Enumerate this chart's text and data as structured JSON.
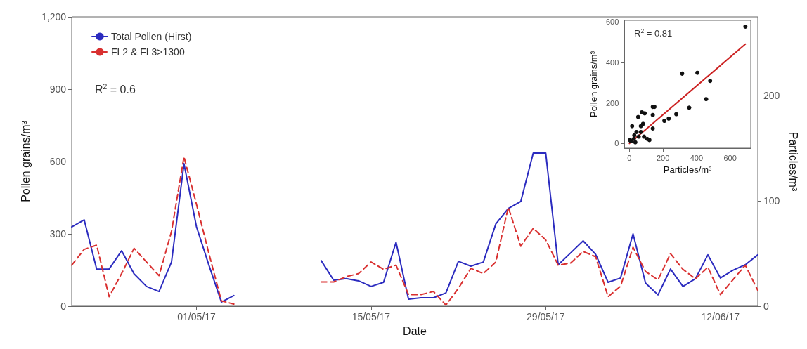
{
  "chart_data": [
    {
      "type": "line",
      "xlabel": "Date",
      "ylabel": "Pollen grains/m³",
      "y2label": "Particles/m³",
      "x": [
        "--04-21",
        "--04-22",
        "--04-23",
        "--04-24",
        "--04-25",
        "--04-26",
        "--04-27",
        "--04-28",
        "--04-29",
        "--04-30",
        "--05-01",
        "--05-02",
        "--05-03",
        "--05-04",
        "--05-05",
        "--05-06",
        "--05-07",
        "--05-08",
        "--05-09",
        "--05-10",
        "--05-11",
        "--05-12",
        "--05-13",
        "--05-14",
        "--05-15",
        "--05-16",
        "--05-17",
        "--05-18",
        "--05-19",
        "--05-20",
        "--05-21",
        "--05-22",
        "--05-23",
        "--05-24",
        "--05-25",
        "--05-26",
        "--05-27",
        "--05-28",
        "--05-29",
        "--05-30",
        "--05-31",
        "--06-01",
        "--06-02",
        "--06-03",
        "--06-04",
        "--06-05",
        "--06-06",
        "--06-07",
        "--06-08",
        "--06-09",
        "--06-10",
        "--06-11",
        "--06-12",
        "--06-13",
        "--06-14",
        "--06-15"
      ],
      "series": [
        {
          "name": "Total Pollen (Hirst)",
          "color": "#2b2bbf",
          "line_style": "solid",
          "values": [
            329,
            358,
            154,
            154,
            230,
            134,
            82,
            61,
            183,
            591,
            330,
            170,
            17,
            44,
            null,
            null,
            null,
            null,
            null,
            null,
            189,
            108,
            114,
            105,
            82,
            99,
            265,
            29,
            35,
            35,
            55,
            186,
            166,
            183,
            341,
            405,
            434,
            635,
            635,
            172,
            221,
            271,
            215,
            99,
            117,
            300,
            96,
            47,
            154,
            82,
            114,
            213,
            117,
            149,
            172,
            213
          ]
        },
        {
          "name": "FL2 & FL3>1300",
          "color": "#d93030",
          "line_style": "dashed",
          "axis": "y2",
          "values": [
            39,
            54,
            58,
            9,
            31,
            55,
            42,
            29,
            71,
            142,
            97,
            50,
            5,
            2,
            null,
            null,
            null,
            null,
            null,
            null,
            23,
            23,
            28,
            31,
            42,
            35,
            39,
            11,
            11,
            14,
            1,
            17,
            36,
            31,
            42,
            94,
            57,
            74,
            63,
            39,
            41,
            52,
            47,
            9,
            19,
            56,
            33,
            25,
            50,
            35,
            26,
            37,
            11,
            25,
            39,
            15
          ]
        }
      ],
      "xlim": [
        "--04-21",
        "--06-15"
      ],
      "xticks": [
        {
          "value": "--05-01",
          "label": "01/05/17"
        },
        {
          "value": "--05-15",
          "label": "15/05/17"
        },
        {
          "value": "--05-29",
          "label": "29/05/17"
        },
        {
          "value": "--06-12",
          "label": "12/06/17"
        }
      ],
      "ylim": [
        0,
        1200
      ],
      "yticks": [
        0,
        300,
        600,
        900,
        {
          "value": 1200,
          "label": "1,200"
        }
      ],
      "y2lim": [
        0,
        275
      ],
      "y2ticks": [
        0,
        100,
        200
      ],
      "annotations": [
        "R$^{2}$ = 0.6"
      ],
      "legend": "top left",
      "grid": false,
      "marker": "none"
    },
    {
      "type": "scatter",
      "xlabel": "Particles/m³",
      "ylabel": "Pollen grains/m³",
      "marker": "circle",
      "grid": false,
      "series": [
        {
          "color": "#111111",
          "x": [
            691,
            314,
            405,
            481,
            457,
            356,
            279,
            234,
            208,
            149,
            139,
            139,
            139,
            91,
            74,
            52,
            16,
            81,
            68,
            42,
            106,
            87,
            26,
            9,
            35,
            55,
            29,
            3,
            119,
            68
          ],
          "values": [
            577,
            345,
            349,
            309,
            219,
            177,
            145,
            123,
            112,
            181,
            181,
            141,
            74,
            149,
            154,
            131,
            86,
            97,
            86,
            57,
            23,
            34,
            23,
            11,
            6,
            34,
            40,
            17,
            17,
            57
          ]
        },
        {
          "type": "line",
          "color": "#cc2222",
          "marker": "none",
          "x": [
            0,
            691
          ],
          "values": [
            0,
            491
          ]
        }
      ],
      "xlim": [
        -30,
        723
      ],
      "xticks": [
        0,
        200,
        400,
        600
      ],
      "ylim": [
        -23,
        608
      ],
      "yticks": [
        0,
        200,
        400,
        600
      ],
      "annotations": [
        "R$^{2}$ = 0.81"
      ]
    }
  ]
}
